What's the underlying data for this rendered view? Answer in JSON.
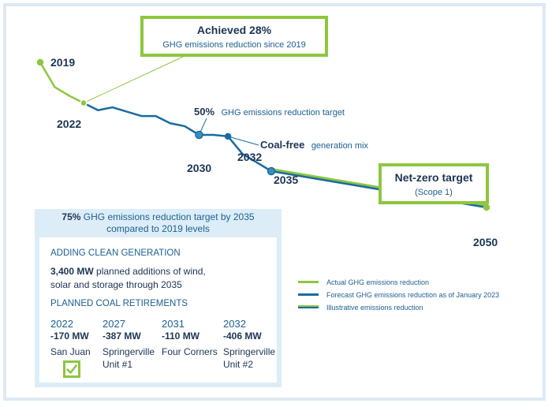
{
  "chart_data": {
    "type": "line",
    "title": "",
    "xlabel": "",
    "ylabel": "",
    "series": [
      {
        "name": "Actual GHG emissions reduction",
        "color": "#8dc63f",
        "x": [
          2019,
          2020,
          2021,
          2022
        ],
        "y": [
          0,
          17,
          23,
          28
        ]
      },
      {
        "name": "Forecast GHG emissions reduction as of January 2023",
        "color": "#1a6aa3",
        "x": [
          2022,
          2023,
          2024,
          2025,
          2026,
          2027,
          2028,
          2029,
          2030,
          2031,
          2032,
          2033,
          2034,
          2035,
          2050
        ],
        "y": [
          28,
          33,
          31,
          34,
          37,
          37,
          42,
          44,
          50,
          50,
          51,
          63,
          69,
          75,
          100
        ]
      },
      {
        "name": "Illustrative emissions reduction",
        "color": "#8dc63f",
        "x": [
          2035,
          2050
        ],
        "y": [
          75,
          100
        ]
      }
    ],
    "labels": {
      "year_2019": "2019",
      "year_2022": "2022",
      "year_2030": "2030",
      "year_2032": "2032",
      "year_2035": "2035",
      "year_2050": "2050"
    },
    "annotations": {
      "target_2030_bold": "50%",
      "target_2030_text": "GHG emissions reduction target",
      "coal_free_bold": "Coal-free",
      "coal_free_text": "generation mix"
    },
    "callouts": {
      "achieved_title": "Achieved 28%",
      "achieved_sub": "GHG emissions reduction since 2019",
      "netzero_title": "Net-zero target",
      "netzero_sub": "(Scope 1)"
    },
    "legend_position": "bottom-right"
  },
  "panel": {
    "header_bold": "75%",
    "header_line1": "GHG emissions reduction target by 2035",
    "header_line2": "compared to 2019 levels",
    "clean_label": "ADDING CLEAN GENERATION",
    "clean_bold": "3,400 MW",
    "clean_text_1": "planned additions of wind,",
    "clean_text_2": "solar and storage through 2035",
    "coal_label": "PLANNED COAL RETIREMENTS",
    "plants": [
      {
        "year": "2022",
        "mw": "-170 MW",
        "name1": "San Juan",
        "name2": ""
      },
      {
        "year": "2027",
        "mw": "-387 MW",
        "name1": "Springerville",
        "name2": "Unit #1"
      },
      {
        "year": "2031",
        "mw": "-110 MW",
        "name1": "Four Corners",
        "name2": ""
      },
      {
        "year": "2032",
        "mw": "-406 MW",
        "name1": "Springerville",
        "name2": "Unit #2"
      }
    ],
    "check_icon": "checkmark-icon"
  },
  "legend": {
    "items": [
      {
        "label": "Actual GHG emissions reduction"
      },
      {
        "label": "Forecast GHG emissions reduction as of January 2023"
      },
      {
        "label": "Illustrative emissions reduction"
      }
    ]
  }
}
